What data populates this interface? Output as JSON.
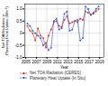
{
  "chart_data": {
    "type": "line",
    "xlabel": "Year",
    "ylabel": "Net TOA Radiation or\nPlanetary Heat Uptake (Wm⁻²)",
    "x": [
      2005.3,
      2005.8,
      2006.3,
      2006.8,
      2007.3,
      2007.8,
      2008.3,
      2008.8,
      2009.3,
      2009.8,
      2010.3,
      2010.8,
      2011.3,
      2011.8,
      2012.3,
      2012.8,
      2013.3,
      2013.8,
      2014.3,
      2014.8,
      2015.3,
      2015.8,
      2016.3,
      2016.8,
      2017.3,
      2017.8,
      2018.3,
      2018.8
    ],
    "series": [
      {
        "name": "Net TOA Radiation (CERES)",
        "color": "#cc3333",
        "values": [
          0.3,
          0.1,
          0.0,
          -0.3,
          0.2,
          -0.1,
          -0.2,
          -0.6,
          -0.1,
          0.15,
          0.45,
          0.5,
          0.3,
          0.25,
          0.55,
          0.7,
          0.4,
          0.45,
          0.5,
          0.45,
          0.6,
          0.55,
          0.9,
          0.85,
          0.75,
          0.85,
          0.9,
          1.0
        ]
      },
      {
        "name": "Planetary Heat Uptake (In Situ)",
        "color": "#3355cc",
        "values": [
          0.4,
          0.3,
          0.1,
          0.0,
          -0.1,
          -0.2,
          -0.5,
          -0.4,
          -0.7,
          -0.6,
          0.5,
          0.6,
          0.15,
          0.2,
          0.8,
          0.9,
          0.1,
          0.15,
          0.5,
          0.55,
          -0.3,
          -0.2,
          1.1,
          1.0,
          0.75,
          0.8,
          1.0,
          1.1
        ]
      }
    ],
    "xlim": [
      2004.8,
      2019.8
    ],
    "ylim": [
      -1.0,
      1.2
    ],
    "xticks": [
      2005,
      2007,
      2009,
      2011,
      2013,
      2015,
      2017,
      2019
    ],
    "yticks": [
      {
        "value": -1.0,
        "label": "-1.0"
      },
      -0.5,
      0,
      0.5,
      {
        "value": 1.0,
        "label": "1.0"
      }
    ],
    "grid": true,
    "legend": "bottom",
    "marker": "square",
    "line_style": "dashed"
  }
}
